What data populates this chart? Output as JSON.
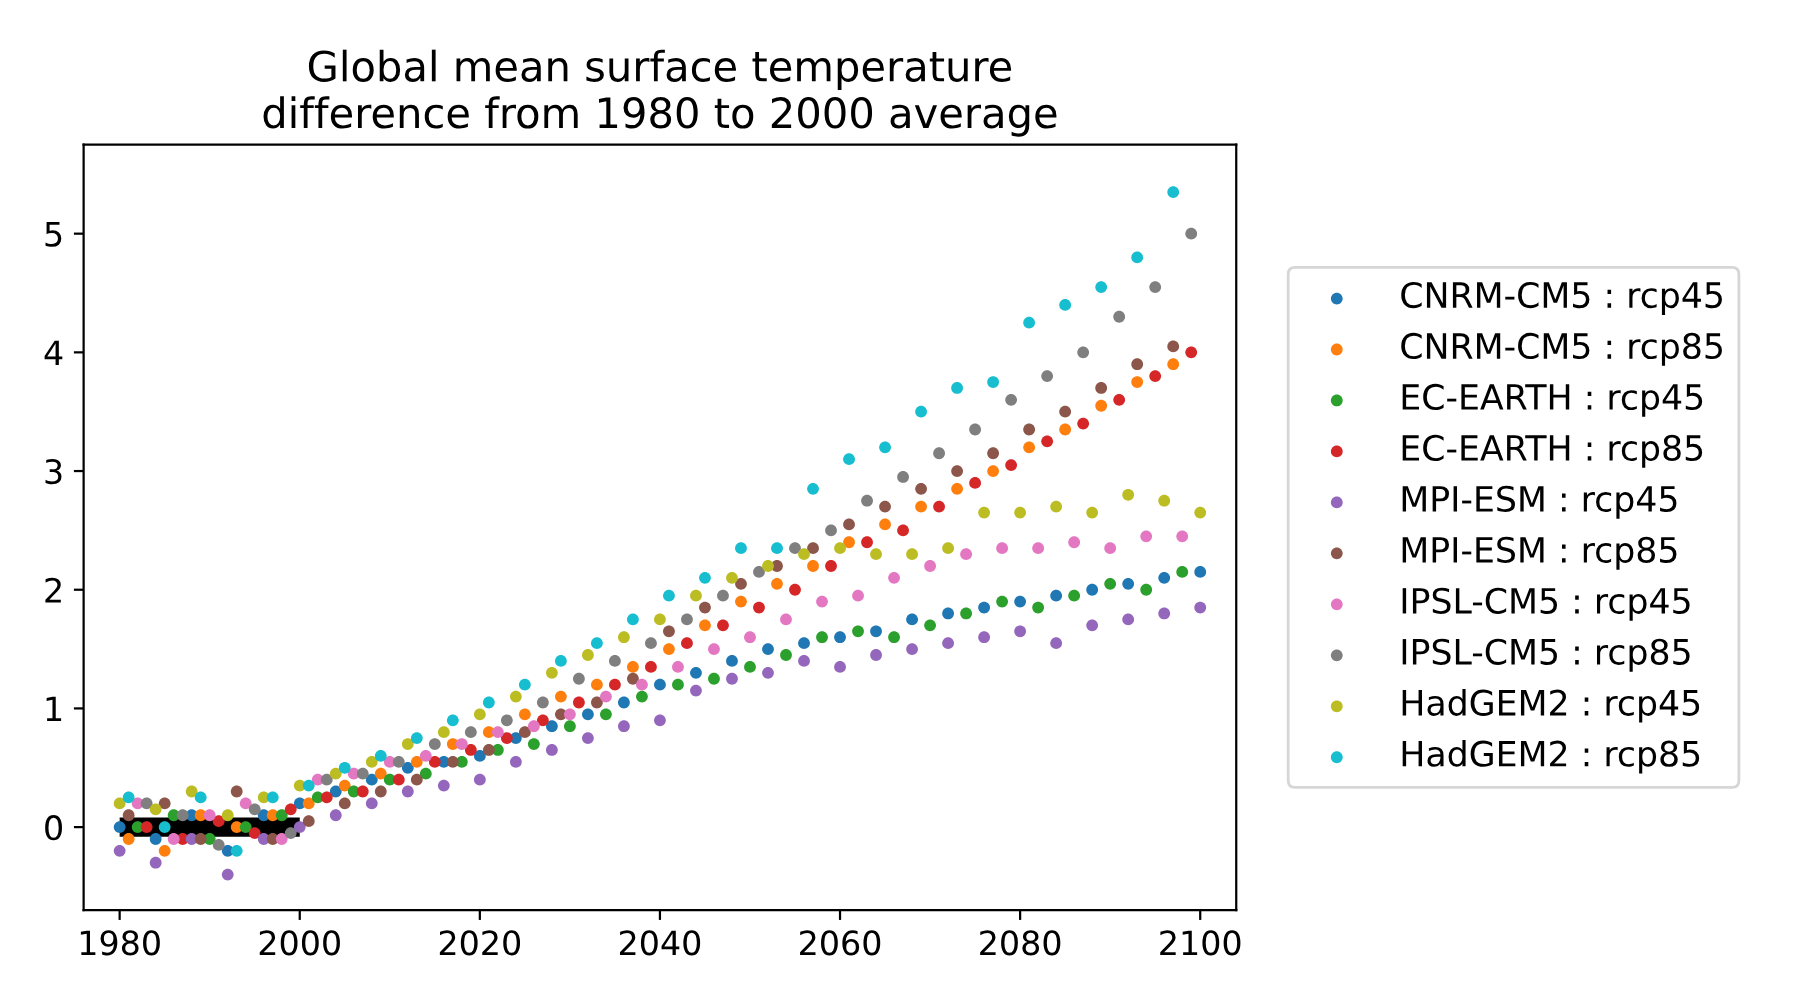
{
  "chart_data": {
    "type": "scatter",
    "title": "Global mean surface temperature\ndifference from 1980 to 2000 average",
    "x": [
      1980,
      1984,
      1988,
      1992,
      1996,
      2000,
      2004,
      2008,
      2012,
      2016,
      2020,
      2024,
      2028,
      2032,
      2036,
      2040,
      2044,
      2048,
      2052,
      2056,
      2060,
      2064,
      2068,
      2072,
      2076,
      2080,
      2084,
      2088,
      2092,
      2096,
      2100
    ],
    "series": [
      {
        "name": "CNRM-CM5 : rcp45",
        "color": "#1f77b4",
        "values": [
          0.0,
          -0.1,
          0.1,
          -0.2,
          0.1,
          0.2,
          0.3,
          0.4,
          0.5,
          0.55,
          0.6,
          0.75,
          0.85,
          0.95,
          1.05,
          1.2,
          1.3,
          1.4,
          1.5,
          1.55,
          1.6,
          1.65,
          1.75,
          1.8,
          1.85,
          1.9,
          1.95,
          2.0,
          2.05,
          2.1,
          2.15
        ]
      },
      {
        "name": "CNRM-CM5 : rcp85",
        "color": "#ff7f0e",
        "x": [
          1981,
          1985,
          1989,
          1993,
          1997,
          2001,
          2005,
          2009,
          2013,
          2017,
          2021,
          2025,
          2029,
          2033,
          2037,
          2041,
          2045,
          2049,
          2053,
          2057,
          2061,
          2065,
          2069,
          2073,
          2077,
          2081,
          2085,
          2089,
          2093,
          2097
        ],
        "values": [
          -0.1,
          -0.2,
          0.1,
          0.0,
          0.1,
          0.2,
          0.35,
          0.45,
          0.55,
          0.7,
          0.8,
          0.95,
          1.1,
          1.2,
          1.35,
          1.5,
          1.7,
          1.9,
          2.05,
          2.2,
          2.4,
          2.55,
          2.7,
          2.85,
          3.0,
          3.2,
          3.35,
          3.55,
          3.75,
          3.9
        ]
      },
      {
        "name": "EC-EARTH : rcp45",
        "color": "#2ca02c",
        "x": [
          1982,
          1986,
          1990,
          1994,
          1998,
          2002,
          2006,
          2010,
          2014,
          2018,
          2022,
          2026,
          2030,
          2034,
          2038,
          2042,
          2046,
          2050,
          2054,
          2058,
          2062,
          2066,
          2070,
          2074,
          2078,
          2082,
          2086,
          2090,
          2094,
          2098
        ],
        "values": [
          0.0,
          0.1,
          -0.1,
          0.0,
          0.1,
          0.25,
          0.3,
          0.4,
          0.45,
          0.55,
          0.65,
          0.7,
          0.85,
          0.95,
          1.1,
          1.2,
          1.25,
          1.35,
          1.45,
          1.6,
          1.65,
          1.6,
          1.7,
          1.8,
          1.9,
          1.85,
          1.95,
          2.05,
          2.0,
          2.15
        ]
      },
      {
        "name": "EC-EARTH : rcp85",
        "color": "#d62728",
        "x": [
          1983,
          1987,
          1991,
          1995,
          1999,
          2003,
          2007,
          2011,
          2015,
          2019,
          2023,
          2027,
          2031,
          2035,
          2039,
          2043,
          2047,
          2051,
          2055,
          2059,
          2063,
          2067,
          2071,
          2075,
          2079,
          2083,
          2087,
          2091,
          2095,
          2099
        ],
        "values": [
          0.0,
          -0.1,
          0.05,
          -0.05,
          0.15,
          0.25,
          0.3,
          0.4,
          0.55,
          0.65,
          0.75,
          0.9,
          1.05,
          1.2,
          1.35,
          1.55,
          1.7,
          1.85,
          2.0,
          2.2,
          2.4,
          2.5,
          2.7,
          2.9,
          3.05,
          3.25,
          3.4,
          3.6,
          3.8,
          4.0
        ]
      },
      {
        "name": "MPI-ESM : rcp45",
        "color": "#9467bd",
        "values": [
          -0.2,
          -0.3,
          -0.1,
          -0.4,
          -0.1,
          0.0,
          0.1,
          0.2,
          0.3,
          0.35,
          0.4,
          0.55,
          0.65,
          0.75,
          0.85,
          0.9,
          1.15,
          1.25,
          1.3,
          1.4,
          1.35,
          1.45,
          1.5,
          1.55,
          1.6,
          1.65,
          1.55,
          1.7,
          1.75,
          1.8,
          1.85
        ]
      },
      {
        "name": "MPI-ESM : rcp85",
        "color": "#8c564b",
        "x": [
          1981,
          1985,
          1989,
          1993,
          1997,
          2001,
          2005,
          2009,
          2013,
          2017,
          2021,
          2025,
          2029,
          2033,
          2037,
          2041,
          2045,
          2049,
          2053,
          2057,
          2061,
          2065,
          2069,
          2073,
          2077,
          2081,
          2085,
          2089,
          2093,
          2097
        ],
        "values": [
          0.1,
          0.2,
          -0.1,
          0.3,
          -0.1,
          0.05,
          0.2,
          0.3,
          0.4,
          0.55,
          0.65,
          0.8,
          0.95,
          1.05,
          1.25,
          1.65,
          1.85,
          2.05,
          2.2,
          2.35,
          2.55,
          2.7,
          2.85,
          3.0,
          3.15,
          3.35,
          3.5,
          3.7,
          3.9,
          4.05
        ]
      },
      {
        "name": "IPSL-CM5 : rcp45",
        "color": "#e377c2",
        "x": [
          1982,
          1986,
          1990,
          1994,
          1998,
          2002,
          2006,
          2010,
          2014,
          2018,
          2022,
          2026,
          2030,
          2034,
          2038,
          2042,
          2046,
          2050,
          2054,
          2058,
          2062,
          2066,
          2070,
          2074,
          2078,
          2082,
          2086,
          2090,
          2094,
          2098
        ],
        "values": [
          0.2,
          -0.1,
          0.1,
          0.2,
          -0.1,
          0.4,
          0.45,
          0.55,
          0.6,
          0.7,
          0.8,
          0.85,
          0.95,
          1.1,
          1.2,
          1.35,
          1.5,
          1.6,
          1.75,
          1.9,
          1.95,
          2.1,
          2.2,
          2.3,
          2.35,
          2.35,
          2.4,
          2.35,
          2.45,
          2.45
        ]
      },
      {
        "name": "IPSL-CM5 : rcp85",
        "color": "#7f7f7f",
        "x": [
          1983,
          1987,
          1991,
          1995,
          1999,
          2003,
          2007,
          2011,
          2015,
          2019,
          2023,
          2027,
          2031,
          2035,
          2039,
          2043,
          2047,
          2051,
          2055,
          2059,
          2063,
          2067,
          2071,
          2075,
          2079,
          2083,
          2087,
          2091,
          2095,
          2099
        ],
        "values": [
          0.2,
          0.1,
          -0.15,
          0.15,
          -0.05,
          0.4,
          0.45,
          0.55,
          0.7,
          0.8,
          0.9,
          1.05,
          1.25,
          1.4,
          1.55,
          1.75,
          1.95,
          2.15,
          2.35,
          2.5,
          2.75,
          2.95,
          3.15,
          3.35,
          3.6,
          3.8,
          4.0,
          4.3,
          4.55,
          5.0
        ]
      },
      {
        "name": "HadGEM2 : rcp45",
        "color": "#bcbd22",
        "values": [
          0.2,
          0.15,
          0.3,
          0.1,
          0.25,
          0.35,
          0.45,
          0.55,
          0.7,
          0.8,
          0.95,
          1.1,
          1.3,
          1.45,
          1.6,
          1.75,
          1.95,
          2.1,
          2.2,
          2.3,
          2.35,
          2.3,
          2.3,
          2.35,
          2.65,
          2.65,
          2.7,
          2.65,
          2.8,
          2.75,
          2.65
        ]
      },
      {
        "name": "HadGEM2 : rcp85",
        "color": "#17becf",
        "x": [
          1981,
          1985,
          1989,
          1993,
          1997,
          2001,
          2005,
          2009,
          2013,
          2017,
          2021,
          2025,
          2029,
          2033,
          2037,
          2041,
          2045,
          2049,
          2053,
          2057,
          2061,
          2065,
          2069,
          2073,
          2077,
          2081,
          2085,
          2089,
          2093,
          2097
        ],
        "values": [
          0.25,
          0.0,
          0.25,
          -0.2,
          0.25,
          0.35,
          0.5,
          0.6,
          0.75,
          0.9,
          1.05,
          1.2,
          1.4,
          1.55,
          1.75,
          1.95,
          2.1,
          2.35,
          2.35,
          2.85,
          3.1,
          3.2,
          3.5,
          3.7,
          3.75,
          4.25,
          4.4,
          4.55,
          4.8,
          5.35
        ]
      },
      {
        "type": "line",
        "color": "#000000",
        "marker": "none",
        "x": [
          1980,
          2000
        ],
        "values": [
          0,
          0
        ]
      }
    ],
    "xlim": [
      1976,
      2104
    ],
    "xticks": [
      1980,
      2000,
      2020,
      2040,
      2060,
      2080,
      2100
    ],
    "ylim": [
      -0.7,
      5.75
    ],
    "yticks": [
      0,
      1,
      2,
      3,
      4,
      5
    ],
    "legend": "right",
    "marker": "circle"
  }
}
